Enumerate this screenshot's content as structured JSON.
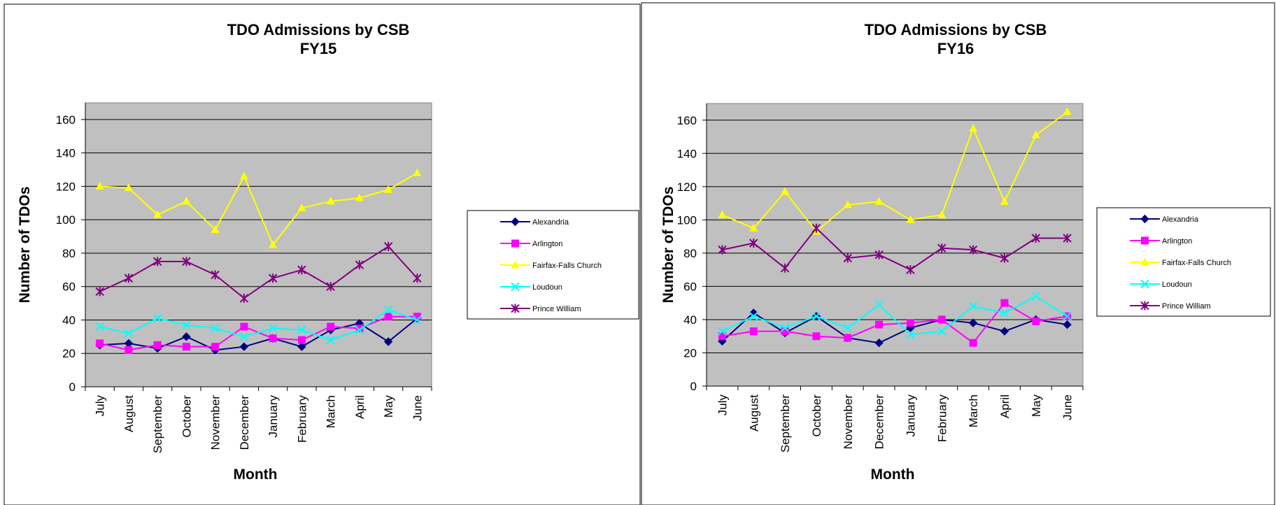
{
  "chart_data": [
    {
      "type": "line",
      "title": "TDO Admissions by CSB",
      "subtitle": "FY15",
      "xlabel": "Month",
      "ylabel": "Number of TDOs",
      "ylim": [
        0,
        170
      ],
      "yticks": [
        0,
        20,
        40,
        60,
        80,
        100,
        120,
        140,
        160
      ],
      "grid": true,
      "legend_position": "right",
      "categories": [
        "July",
        "August",
        "September",
        "October",
        "November",
        "December",
        "January",
        "February",
        "March",
        "April",
        "May",
        "June"
      ],
      "series": [
        {
          "name": "Alexandria",
          "color": "#000080",
          "marker": "diamond",
          "values": [
            25,
            26,
            23,
            30,
            22,
            24,
            29,
            24,
            34,
            38,
            27,
            41
          ]
        },
        {
          "name": "Arlington",
          "color": "#ff00ff",
          "marker": "square",
          "values": [
            26,
            22,
            25,
            24,
            24,
            36,
            29,
            28,
            36,
            35,
            42,
            42
          ]
        },
        {
          "name": "Fairfax-Falls Church",
          "color": "#ffff00",
          "marker": "triangle",
          "values": [
            120,
            119,
            103,
            111,
            94,
            126,
            85,
            107,
            111,
            113,
            118,
            128
          ]
        },
        {
          "name": "Loudoun",
          "color": "#00ffff",
          "marker": "x",
          "values": [
            36,
            32,
            41,
            37,
            35,
            30,
            35,
            34,
            28,
            34,
            46,
            40
          ]
        },
        {
          "name": "Prince William",
          "color": "#800080",
          "marker": "star",
          "values": [
            57,
            65,
            75,
            75,
            67,
            53,
            65,
            70,
            60,
            73,
            84,
            65
          ]
        }
      ]
    },
    {
      "type": "line",
      "title": "TDO Admissions by CSB",
      "subtitle": "FY16",
      "xlabel": "Month",
      "ylabel": "Number of TDOs",
      "ylim": [
        0,
        170
      ],
      "yticks": [
        0,
        20,
        40,
        60,
        80,
        100,
        120,
        140,
        160
      ],
      "grid": true,
      "legend_position": "right",
      "categories": [
        "July",
        "August",
        "September",
        "October",
        "November",
        "December",
        "January",
        "February",
        "March",
        "April",
        "May",
        "June"
      ],
      "series": [
        {
          "name": "Alexandria",
          "color": "#000080",
          "marker": "diamond",
          "values": [
            27,
            44,
            32,
            42,
            29,
            26,
            35,
            40,
            38,
            33,
            40,
            37
          ]
        },
        {
          "name": "Arlington",
          "color": "#ff00ff",
          "marker": "square",
          "values": [
            30,
            33,
            33,
            30,
            29,
            37,
            38,
            40,
            26,
            50,
            39,
            42
          ]
        },
        {
          "name": "Fairfax-Falls Church",
          "color": "#ffff00",
          "marker": "triangle",
          "values": [
            103,
            95,
            117,
            93,
            109,
            111,
            100,
            103,
            155,
            111,
            151,
            165
          ]
        },
        {
          "name": "Loudoun",
          "color": "#00ffff",
          "marker": "x",
          "values": [
            33,
            42,
            35,
            42,
            35,
            49,
            31,
            33,
            48,
            44,
            54,
            42
          ]
        },
        {
          "name": "Prince William",
          "color": "#800080",
          "marker": "star",
          "values": [
            82,
            86,
            71,
            95,
            77,
            79,
            70,
            83,
            82,
            77,
            89,
            89
          ]
        }
      ]
    }
  ]
}
